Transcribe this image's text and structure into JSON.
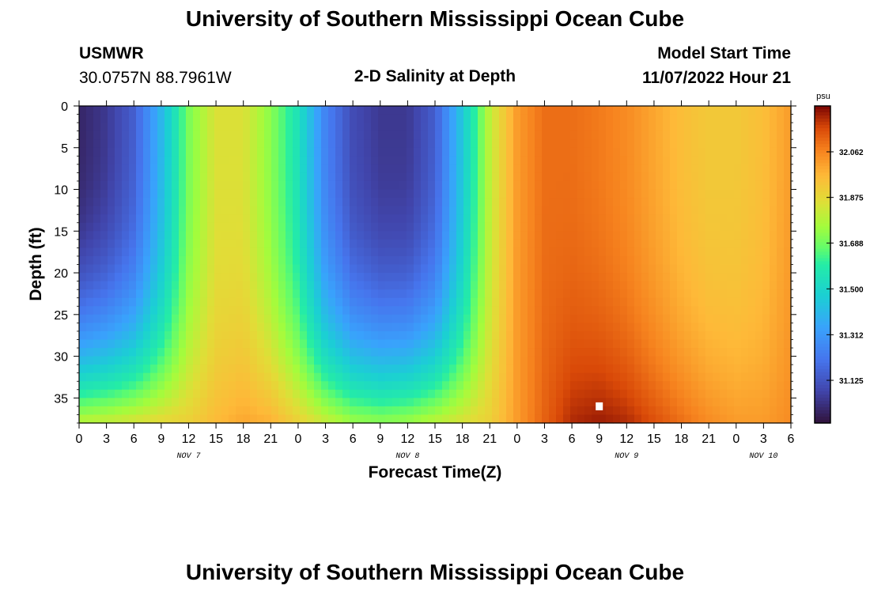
{
  "header": {
    "title": "University of Southern Mississippi Ocean Cube",
    "station": "USMWR",
    "coords": "30.0757N  88.7961W",
    "plot_title": "2-D Salinity at Depth",
    "start_label": "Model Start Time",
    "start_value": "11/07/2022 Hour 21"
  },
  "footer": {
    "title": "University of Southern Mississippi Ocean Cube"
  },
  "chart_data": {
    "type": "heatmap",
    "title": "2-D Salinity at Depth",
    "xlabel": "Forecast Time(Z)",
    "ylabel": "Depth (ft)",
    "x_hours_range": [
      0,
      78
    ],
    "ylim": [
      0,
      38
    ],
    "x_tick_labels": [
      "0",
      "3",
      "6",
      "9",
      "12",
      "15",
      "18",
      "21",
      "0",
      "3",
      "6",
      "9",
      "12",
      "15",
      "18",
      "21",
      "0",
      "3",
      "6",
      "9",
      "12",
      "15",
      "18",
      "21",
      "0",
      "3",
      "6"
    ],
    "date_labels": [
      {
        "label": "NOV 7",
        "hour": 12
      },
      {
        "label": "NOV 8",
        "hour": 36
      },
      {
        "label": "NOV 9",
        "hour": 60
      },
      {
        "label": "NOV 10",
        "hour": 75
      }
    ],
    "y_ticks": [
      "0",
      "5",
      "10",
      "15",
      "20",
      "25",
      "30",
      "35"
    ],
    "y_tick_values": [
      0,
      5,
      10,
      15,
      20,
      25,
      30,
      35
    ],
    "colorbar": {
      "unit": "psu",
      "min": 30.95,
      "max": 32.25,
      "ticks": [
        "32.062",
        "31.875",
        "31.688",
        "31.500",
        "31.312",
        "31.125"
      ],
      "tick_values": [
        32.062,
        31.875,
        31.688,
        31.5,
        31.312,
        31.125
      ]
    },
    "marker": {
      "hour": 57,
      "depth": 36
    },
    "surface_salinity": {
      "hours": [
        0,
        3,
        6,
        9,
        12,
        15,
        18,
        21,
        24,
        27,
        30,
        33,
        36,
        39,
        42,
        45,
        48,
        51,
        54,
        57,
        60,
        63,
        66,
        69,
        72,
        75,
        78
      ],
      "values": [
        31.0,
        31.05,
        31.15,
        31.4,
        31.7,
        31.85,
        31.85,
        31.72,
        31.55,
        31.25,
        31.1,
        31.05,
        31.05,
        31.15,
        31.45,
        31.8,
        32.02,
        32.1,
        32.1,
        32.08,
        32.05,
        32.0,
        31.95,
        31.92,
        31.92,
        31.95,
        32.02
      ]
    },
    "bottom_salinity": {
      "hours": [
        0,
        3,
        6,
        9,
        12,
        15,
        18,
        21,
        24,
        27,
        30,
        33,
        36,
        39,
        42,
        45,
        48,
        51,
        54,
        57,
        60,
        63,
        66,
        69,
        72,
        75,
        78
      ],
      "values": [
        31.8,
        31.82,
        31.85,
        31.88,
        31.9,
        31.96,
        32.0,
        31.98,
        31.9,
        31.82,
        31.75,
        31.73,
        31.75,
        31.8,
        31.85,
        31.9,
        32.02,
        32.12,
        32.2,
        32.22,
        32.2,
        32.15,
        32.1,
        32.05,
        32.02,
        32.02,
        32.05
      ]
    }
  }
}
